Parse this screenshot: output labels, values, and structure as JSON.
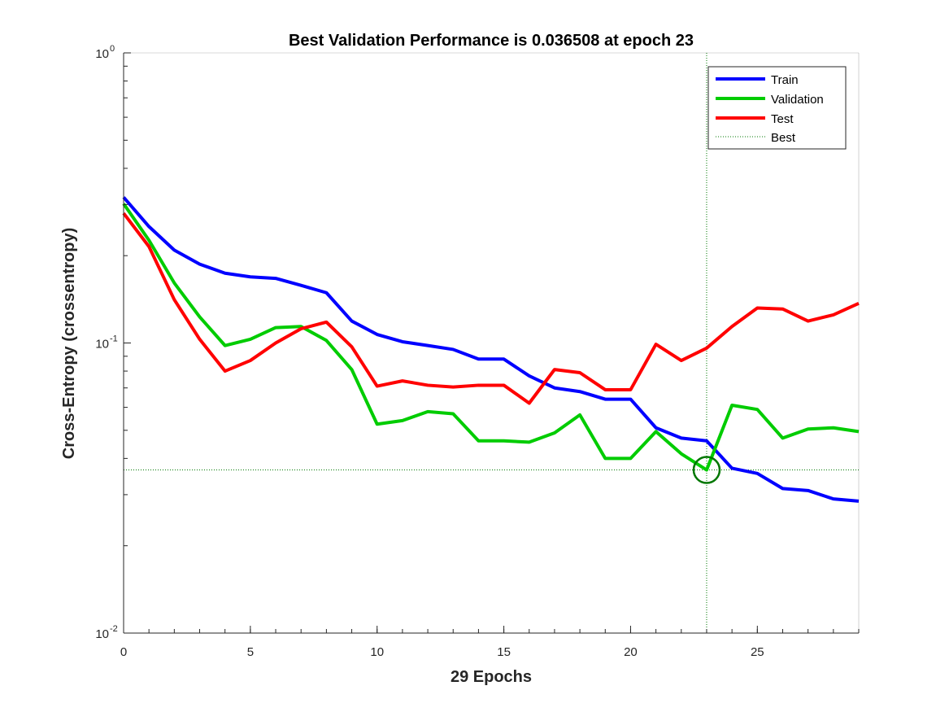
{
  "chart_data": {
    "type": "line",
    "title": "Best Validation Performance is 0.036508 at epoch 23",
    "xlabel": "29 Epochs",
    "ylabel": "Cross-Entropy  (crossentropy)",
    "xlim": [
      0,
      29
    ],
    "ylim": [
      0.01,
      1
    ],
    "yscale": "log",
    "x_ticks": [
      0,
      5,
      10,
      15,
      20,
      25
    ],
    "y_ticks": [
      {
        "value": 0.01,
        "base": "10",
        "exp": "-2"
      },
      {
        "value": 0.1,
        "base": "10",
        "exp": "-1"
      },
      {
        "value": 1,
        "base": "10",
        "exp": "0"
      }
    ],
    "x": [
      0,
      1,
      2,
      3,
      4,
      5,
      6,
      7,
      8,
      9,
      10,
      11,
      12,
      13,
      14,
      15,
      16,
      17,
      18,
      19,
      20,
      21,
      22,
      23,
      24,
      25,
      26,
      27,
      28,
      29
    ],
    "series": [
      {
        "name": "Train",
        "color": "#0000ff",
        "values": [
          0.318,
          0.252,
          0.209,
          0.187,
          0.174,
          0.169,
          0.167,
          0.158,
          0.149,
          0.119,
          0.107,
          0.101,
          0.098,
          0.095,
          0.088,
          0.088,
          0.077,
          0.07,
          0.068,
          0.064,
          0.064,
          0.051,
          0.047,
          0.046,
          0.037,
          0.0355,
          0.0315,
          0.031,
          0.029,
          0.0285
        ]
      },
      {
        "name": "Validation",
        "color": "#00cc00",
        "values": [
          0.302,
          0.226,
          0.161,
          0.123,
          0.098,
          0.103,
          0.113,
          0.114,
          0.102,
          0.081,
          0.0525,
          0.054,
          0.058,
          0.057,
          0.046,
          0.046,
          0.0455,
          0.049,
          0.0565,
          0.04,
          0.04,
          0.0495,
          0.0415,
          0.036508,
          0.061,
          0.059,
          0.047,
          0.0505,
          0.051,
          0.0495
        ]
      },
      {
        "name": "Test",
        "color": "#ff0000",
        "values": [
          0.28,
          0.215,
          0.141,
          0.103,
          0.08,
          0.087,
          0.1,
          0.112,
          0.118,
          0.097,
          0.071,
          0.074,
          0.0715,
          0.0705,
          0.0715,
          0.0715,
          0.062,
          0.081,
          0.079,
          0.069,
          0.069,
          0.099,
          0.087,
          0.096,
          0.114,
          0.132,
          0.131,
          0.119,
          0.125,
          0.137
        ]
      }
    ],
    "best": {
      "label": "Best",
      "epoch": 23,
      "value": 0.036508,
      "color": "#007700"
    },
    "legend_position": "top-right",
    "grid": false
  }
}
